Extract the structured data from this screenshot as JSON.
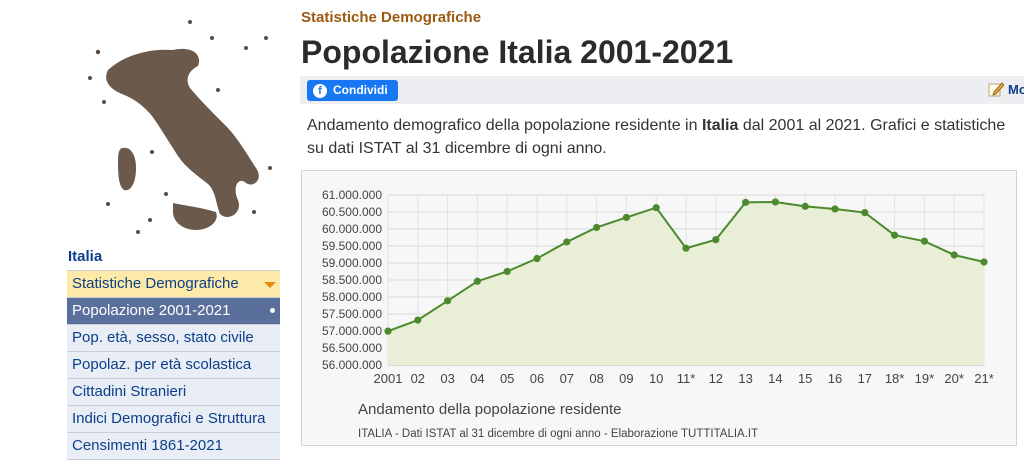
{
  "sidebar": {
    "region": "Italia",
    "items": [
      {
        "label": "Statistiche Demografiche"
      },
      {
        "label": "Popolazione 2001-2021"
      },
      {
        "label": "Pop. età, sesso, stato civile"
      },
      {
        "label": "Popolaz. per età scolastica"
      },
      {
        "label": "Cittadini Stranieri"
      },
      {
        "label": "Indici Demografici e Struttura"
      },
      {
        "label": "Censimenti 1861-2021"
      }
    ]
  },
  "header": {
    "kicker": "Statistiche Demografiche",
    "title": "Popolazione Italia 2001-2021"
  },
  "sharebar": {
    "share_label": "Condividi",
    "edit_label": "Mo"
  },
  "intro": {
    "part1": "Andamento demografico della popolazione residente in ",
    "place": "Italia",
    "part2": " dal 2001 al 2021. Grafici e statistiche su dati ISTAT al 31 dicembre di ogni anno."
  },
  "colors": {
    "line": "#4d8a2e",
    "fill": "#e9efd7",
    "brand_blue": "#0b3f8a",
    "facebook": "#1877f2"
  },
  "chart_data": {
    "type": "line",
    "title": "Andamento della popolazione residente",
    "subtitle": "ITALIA - Dati ISTAT al 31 dicembre di ogni anno - Elaborazione TUTTITALIA.IT",
    "categories": [
      "2001",
      "02",
      "03",
      "04",
      "05",
      "06",
      "07",
      "08",
      "09",
      "10",
      "11*",
      "12",
      "13",
      "14",
      "15",
      "16",
      "17",
      "18*",
      "19*",
      "20*",
      "21*"
    ],
    "values": [
      56995744,
      57321070,
      57888245,
      58462375,
      58751711,
      59131287,
      59619290,
      60045068,
      60340328,
      60626442,
      59433744,
      59685227,
      60782668,
      60795612,
      60665551,
      60589445,
      60483973,
      59816673,
      59641488,
      59236213,
      59030133
    ],
    "ylim": [
      56000000,
      61000000
    ],
    "yticks": [
      "56.000.000",
      "56.500.000",
      "57.000.000",
      "57.500.000",
      "58.000.000",
      "58.500.000",
      "59.000.000",
      "59.500.000",
      "60.000.000",
      "60.500.000",
      "61.000.000"
    ],
    "grid": true,
    "area": true
  }
}
